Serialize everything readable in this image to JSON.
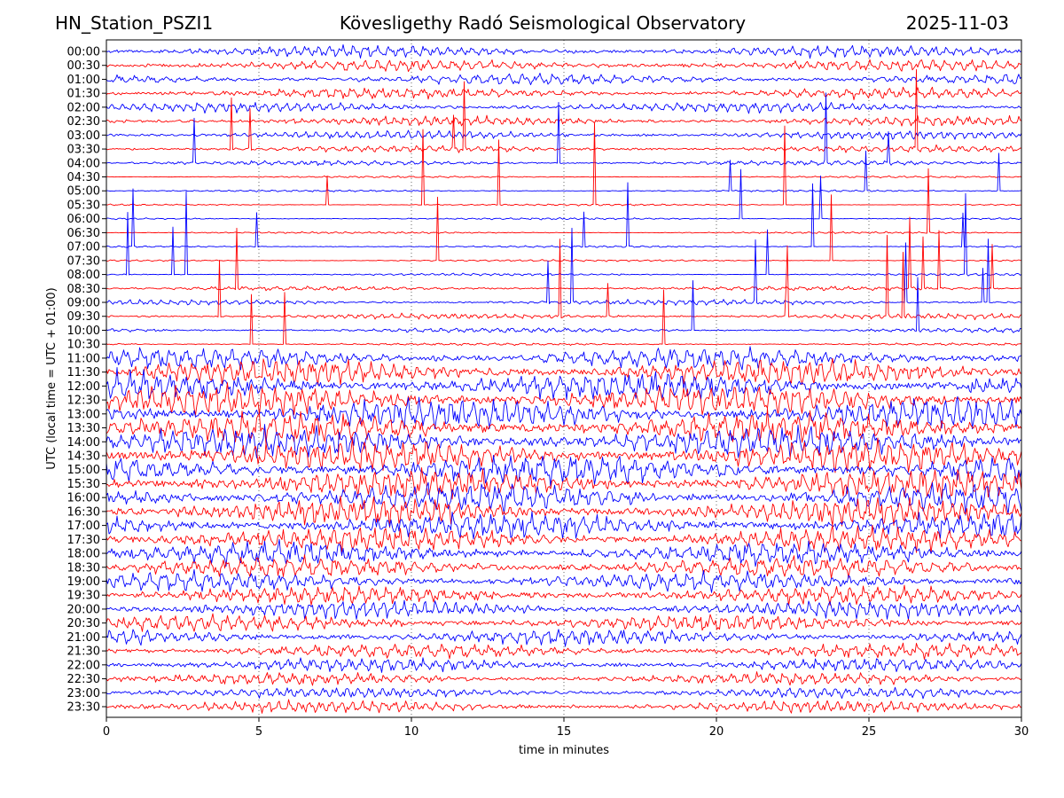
{
  "header": {
    "station": "HN_Station_PSZI1",
    "observatory": "Kövesligethy Radó Seismological Observatory",
    "date": "2025-11-03"
  },
  "chart_data": {
    "type": "line",
    "title": "Kövesligethy Radó Seismological Observatory",
    "xlabel": "time in minutes",
    "ylabel": "UTC (local time = UTC + 01:00)",
    "xlim": [
      0,
      30
    ],
    "xticks": [
      0,
      5,
      10,
      15,
      20,
      25,
      30
    ],
    "grid": "vertical dotted lines at each 5-minute tick",
    "trace_colors": [
      "#0000ff",
      "#ff0000"
    ],
    "rows": [
      {
        "label": "00:00",
        "activity": 0.85
      },
      {
        "label": "00:30",
        "activity": 0.85
      },
      {
        "label": "01:00",
        "activity": 0.8
      },
      {
        "label": "01:30",
        "activity": 0.8
      },
      {
        "label": "02:00",
        "activity": 0.75
      },
      {
        "label": "02:30",
        "activity": 0.7
      },
      {
        "label": "03:00",
        "activity": 0.6
      },
      {
        "label": "03:30",
        "activity": 0.45
      },
      {
        "label": "04:00",
        "activity": 0.3
      },
      {
        "label": "04:30",
        "activity": 0.05
      },
      {
        "label": "05:00",
        "activity": 0.05
      },
      {
        "label": "05:30",
        "activity": 0.05
      },
      {
        "label": "06:00",
        "activity": 0.06
      },
      {
        "label": "06:30",
        "activity": 0.06
      },
      {
        "label": "07:00",
        "activity": 0.06
      },
      {
        "label": "07:30",
        "activity": 0.06
      },
      {
        "label": "08:00",
        "activity": 0.1
      },
      {
        "label": "08:30",
        "activity": 0.25
      },
      {
        "label": "09:00",
        "activity": 0.35
      },
      {
        "label": "09:30",
        "activity": 0.35
      },
      {
        "label": "10:00",
        "activity": 0.3
      },
      {
        "label": "10:30",
        "activity": 0.1
      },
      {
        "label": "11:00",
        "activity": 1.6
      },
      {
        "label": "11:30",
        "activity": 2.0
      },
      {
        "label": "12:00",
        "activity": 2.2
      },
      {
        "label": "12:30",
        "activity": 2.3
      },
      {
        "label": "13:00",
        "activity": 2.4
      },
      {
        "label": "13:30",
        "activity": 2.4
      },
      {
        "label": "14:00",
        "activity": 2.4
      },
      {
        "label": "14:30",
        "activity": 2.4
      },
      {
        "label": "15:00",
        "activity": 2.3
      },
      {
        "label": "15:30",
        "activity": 2.3
      },
      {
        "label": "16:00",
        "activity": 2.2
      },
      {
        "label": "16:30",
        "activity": 2.1
      },
      {
        "label": "17:00",
        "activity": 2.0
      },
      {
        "label": "17:30",
        "activity": 1.9
      },
      {
        "label": "18:00",
        "activity": 1.8
      },
      {
        "label": "18:30",
        "activity": 1.6
      },
      {
        "label": "19:00",
        "activity": 1.5
      },
      {
        "label": "19:30",
        "activity": 1.4
      },
      {
        "label": "20:00",
        "activity": 1.3
      },
      {
        "label": "20:30",
        "activity": 1.25
      },
      {
        "label": "21:00",
        "activity": 1.2
      },
      {
        "label": "21:30",
        "activity": 1.1
      },
      {
        "label": "22:00",
        "activity": 1.0
      },
      {
        "label": "22:30",
        "activity": 0.9
      },
      {
        "label": "23:00",
        "activity": 0.8
      },
      {
        "label": "23:30",
        "activity": 0.9
      }
    ]
  }
}
